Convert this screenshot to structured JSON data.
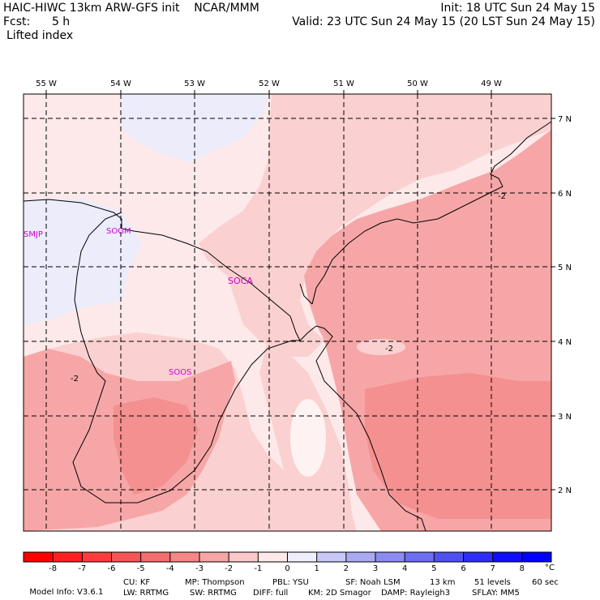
{
  "header": {
    "line1_left": "HAIC-HIWC 13km ARW-GFS init    NCAR/MMM",
    "line1_right": "Init: 18 UTC Sun 24 May 15",
    "line2_left": "Fcst:      5 h",
    "line2_right": "Valid: 23 UTC Sun 24 May 15 (20 LST Sun 24 May 15)",
    "line3_left": "Lifted index"
  },
  "map": {
    "lon_labels": [
      "55 W",
      "54 W",
      "53 W",
      "52 W",
      "51 W",
      "50 W",
      "49 W"
    ],
    "lat_labels": [
      "7 N",
      "6 N",
      "5 N",
      "4 N",
      "3 N",
      "2 N"
    ],
    "stations": [
      "SMJP",
      "SOGM",
      "SOCA",
      "SOOS"
    ],
    "contour_labels": [
      "-2",
      "-2",
      "-2"
    ],
    "fill_colors": {
      "lightest_pink": "#fde9e9",
      "light_pink": "#fbd0d0",
      "pink": "#f6a6a6",
      "medium_pink": "#f59595",
      "lavender": "#e8e8fa",
      "white": "#fff6f6"
    }
  },
  "colorbar": {
    "ticks": [
      "-8",
      "-7",
      "-6",
      "-5",
      "-4",
      "-3",
      "-2",
      "-1",
      "0",
      "1",
      "2",
      "3",
      "4",
      "5",
      "6",
      "7",
      "8"
    ],
    "unit": "°C",
    "colors": [
      "#ff0000",
      "#ff2020",
      "#ff3c3c",
      "#f55555",
      "#f56e6e",
      "#f58787",
      "#f6a6a6",
      "#fbc8c8",
      "#fde9e9",
      "#eeeefd",
      "#c8c8f6",
      "#aaaaf2",
      "#8c8cef",
      "#6e6ef0",
      "#5050f2",
      "#2e2ef5",
      "#1010f8",
      "#0000ff"
    ]
  },
  "footer": {
    "line1": [
      "Model Info: V3.6.1",
      "CU: KF",
      "MP: Thompson",
      "PBL: YSU",
      "SF: Noah LSM",
      "13 km",
      "51 levels",
      "60 sec"
    ],
    "line2": [
      "LW: RRTMG",
      "SW: RRTMG",
      "DIFF: full",
      "KM: 2D Smagor",
      "DAMP: Rayleigh3",
      "SFLAY: MM5"
    ]
  }
}
